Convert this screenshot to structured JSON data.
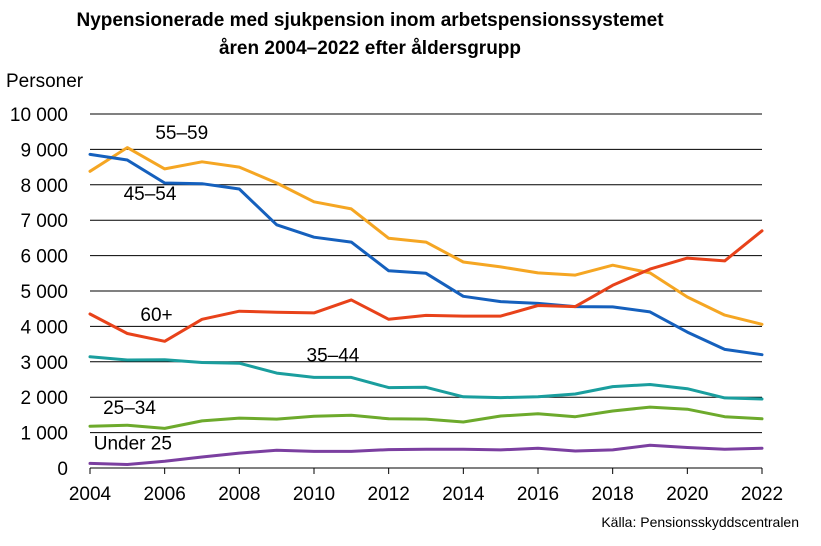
{
  "chart_data": {
    "type": "line",
    "title": "Nypensionerade med sjukpension inom arbetspensionssystemet",
    "subtitle": "åren 2004–2022 efter åldersgrupp",
    "ylabel": "Personer",
    "xlabel": "",
    "source": "Källa: Pensionsskyddscentralen",
    "x": [
      2004,
      2005,
      2006,
      2007,
      2008,
      2009,
      2010,
      2011,
      2012,
      2013,
      2014,
      2015,
      2016,
      2017,
      2018,
      2019,
      2020,
      2021,
      2022
    ],
    "xticks": [
      "2004",
      "2006",
      "2008",
      "2010",
      "2012",
      "2014",
      "2016",
      "2018",
      "2020",
      "2022"
    ],
    "yticks": [
      "0",
      "1 000",
      "2 000",
      "3 000",
      "4 000",
      "5 000",
      "6 000",
      "7 000",
      "8 000",
      "9 000",
      "10 000"
    ],
    "ylim": [
      0,
      10000
    ],
    "xlim": [
      2004,
      2022
    ],
    "grid": "horizontal",
    "series": [
      {
        "name": "55–59",
        "color": "#F5A623",
        "values": [
          8380,
          9050,
          8450,
          8650,
          8500,
          8050,
          7520,
          7320,
          6490,
          6380,
          5820,
          5680,
          5510,
          5450,
          5730,
          5510,
          4830,
          4320,
          4060
        ]
      },
      {
        "name": "45–54",
        "color": "#1560BD",
        "values": [
          8860,
          8700,
          8050,
          8030,
          7880,
          6870,
          6520,
          6380,
          5570,
          5500,
          4850,
          4700,
          4650,
          4560,
          4550,
          4410,
          3840,
          3350,
          3200
        ]
      },
      {
        "name": "60+",
        "color": "#E8421A",
        "values": [
          4350,
          3800,
          3580,
          4200,
          4430,
          4400,
          4380,
          4750,
          4200,
          4310,
          4290,
          4290,
          4590,
          4560,
          5160,
          5620,
          5930,
          5850,
          6700
        ]
      },
      {
        "name": "35–44",
        "color": "#1A9E9E",
        "values": [
          3140,
          3050,
          3060,
          2980,
          2960,
          2680,
          2560,
          2560,
          2270,
          2280,
          2010,
          1990,
          2010,
          2090,
          2300,
          2360,
          2240,
          1980,
          1950
        ]
      },
      {
        "name": "25–34",
        "color": "#6DAA2C",
        "values": [
          1180,
          1210,
          1120,
          1330,
          1410,
          1380,
          1460,
          1490,
          1390,
          1380,
          1300,
          1470,
          1530,
          1450,
          1610,
          1720,
          1660,
          1450,
          1390
        ]
      },
      {
        "name": "Under 25",
        "color": "#7B3FA0",
        "values": [
          130,
          100,
          190,
          310,
          420,
          500,
          470,
          470,
          520,
          530,
          530,
          510,
          560,
          480,
          510,
          640,
          580,
          530,
          560
        ]
      }
    ]
  }
}
